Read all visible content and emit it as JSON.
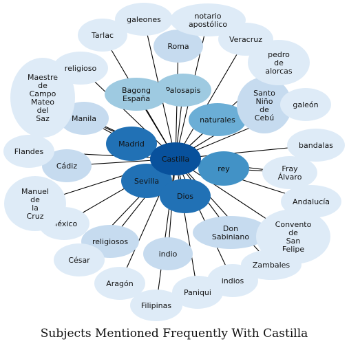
{
  "title": "Subjects Mentioned Frequently With Castilla",
  "center": {
    "name": "Castilla",
    "color": "#08519c"
  },
  "colors": {
    "level1": "#2171b5",
    "level2": "#4292c6",
    "level3": "#6baed6",
    "level4": "#9ecae1",
    "level5": "#c6dbef",
    "level6": "#deebf7",
    "edge": "#000000"
  },
  "nodes": [
    {
      "id": "sevilla",
      "label": "Sevilla",
      "color": "level1"
    },
    {
      "id": "dios",
      "label": "Dios",
      "color": "level1"
    },
    {
      "id": "madrid",
      "label": "Madrid",
      "color": "level1"
    },
    {
      "id": "rey",
      "label": "rey",
      "color": "level2"
    },
    {
      "id": "naturales",
      "label": "naturales",
      "color": "level3"
    },
    {
      "id": "palosapis",
      "label": "Palosapis",
      "color": "level4"
    },
    {
      "id": "bagong",
      "label": "Bagong\nEspaña",
      "color": "level4"
    },
    {
      "id": "santo",
      "label": "Santo\nNiño\nde\nCebú",
      "color": "level5"
    },
    {
      "id": "roma",
      "label": "Roma",
      "color": "level5"
    },
    {
      "id": "manila",
      "label": "Manila",
      "color": "level5"
    },
    {
      "id": "cadiz",
      "label": "Cádiz",
      "color": "level5"
    },
    {
      "id": "religiosos",
      "label": "religiosos",
      "color": "level5"
    },
    {
      "id": "indio",
      "label": "indio",
      "color": "level5"
    },
    {
      "id": "don",
      "label": "Don\nSabiniano",
      "color": "level5"
    },
    {
      "id": "fray",
      "label": "Fray\nÁlvaro",
      "color": "level6"
    },
    {
      "id": "tarlac",
      "label": "Tarlac",
      "color": "level6"
    },
    {
      "id": "galeones",
      "label": "galeones",
      "color": "level6"
    },
    {
      "id": "notario",
      "label": "notario\napostólico",
      "color": "level6"
    },
    {
      "id": "veracruz",
      "label": "Veracruz",
      "color": "level6"
    },
    {
      "id": "pedro",
      "label": "pedro\nde\nalorcas",
      "color": "level6"
    },
    {
      "id": "galeon",
      "label": "galeón",
      "color": "level6"
    },
    {
      "id": "bandalas",
      "label": "bandalas",
      "color": "level6"
    },
    {
      "id": "andalucia",
      "label": "Andalucía",
      "color": "level6"
    },
    {
      "id": "convento",
      "label": "Convento\nde\nSan\nFelipe",
      "color": "level6"
    },
    {
      "id": "zambales",
      "label": "Zambales",
      "color": "level6"
    },
    {
      "id": "indios",
      "label": "indios",
      "color": "level6"
    },
    {
      "id": "paniqui",
      "label": "Paniqui",
      "color": "level6"
    },
    {
      "id": "filipinas",
      "label": "Filipinas",
      "color": "level6"
    },
    {
      "id": "aragon",
      "label": "Aragón",
      "color": "level6"
    },
    {
      "id": "cesar",
      "label": "César",
      "color": "level6"
    },
    {
      "id": "mexico",
      "label": "México",
      "color": "level6"
    },
    {
      "id": "manuel",
      "label": "Manuel\nde\nla\nCruz",
      "color": "level6"
    },
    {
      "id": "flandes",
      "label": "Flandes",
      "color": "level6"
    },
    {
      "id": "maestre",
      "label": "Maestre\nde\nCampo\nMateo\ndel\nSaz",
      "color": "level6"
    },
    {
      "id": "religioso",
      "label": "religioso",
      "color": "level6"
    }
  ],
  "edges": [
    [
      "castilla",
      "sevilla"
    ],
    [
      "castilla",
      "dios"
    ],
    [
      "castilla",
      "madrid"
    ],
    [
      "castilla",
      "rey"
    ],
    [
      "castilla",
      "naturales"
    ],
    [
      "castilla",
      "palosapis"
    ],
    [
      "castilla",
      "bagong"
    ],
    [
      "castilla",
      "santo"
    ],
    [
      "castilla",
      "roma"
    ],
    [
      "castilla",
      "manila"
    ],
    [
      "castilla",
      "cadiz"
    ],
    [
      "castilla",
      "religiosos"
    ],
    [
      "castilla",
      "indio"
    ],
    [
      "castilla",
      "don"
    ],
    [
      "castilla",
      "fray"
    ],
    [
      "castilla",
      "tarlac"
    ],
    [
      "castilla",
      "galeones"
    ],
    [
      "castilla",
      "notario"
    ],
    [
      "castilla",
      "veracruz"
    ],
    [
      "castilla",
      "pedro"
    ],
    [
      "castilla",
      "galeon"
    ],
    [
      "castilla",
      "bandalas"
    ],
    [
      "castilla",
      "andalucia"
    ],
    [
      "castilla",
      "convento"
    ],
    [
      "castilla",
      "zambales"
    ],
    [
      "castilla",
      "indios"
    ],
    [
      "castilla",
      "paniqui"
    ],
    [
      "castilla",
      "filipinas"
    ],
    [
      "castilla",
      "aragon"
    ],
    [
      "castilla",
      "cesar"
    ],
    [
      "castilla",
      "mexico"
    ],
    [
      "castilla",
      "manuel"
    ],
    [
      "castilla",
      "flandes"
    ],
    [
      "castilla",
      "maestre"
    ],
    [
      "castilla",
      "religioso"
    ],
    [
      "manila",
      "madrid"
    ],
    [
      "dios",
      "sevilla"
    ],
    [
      "rey",
      "fray"
    ]
  ]
}
